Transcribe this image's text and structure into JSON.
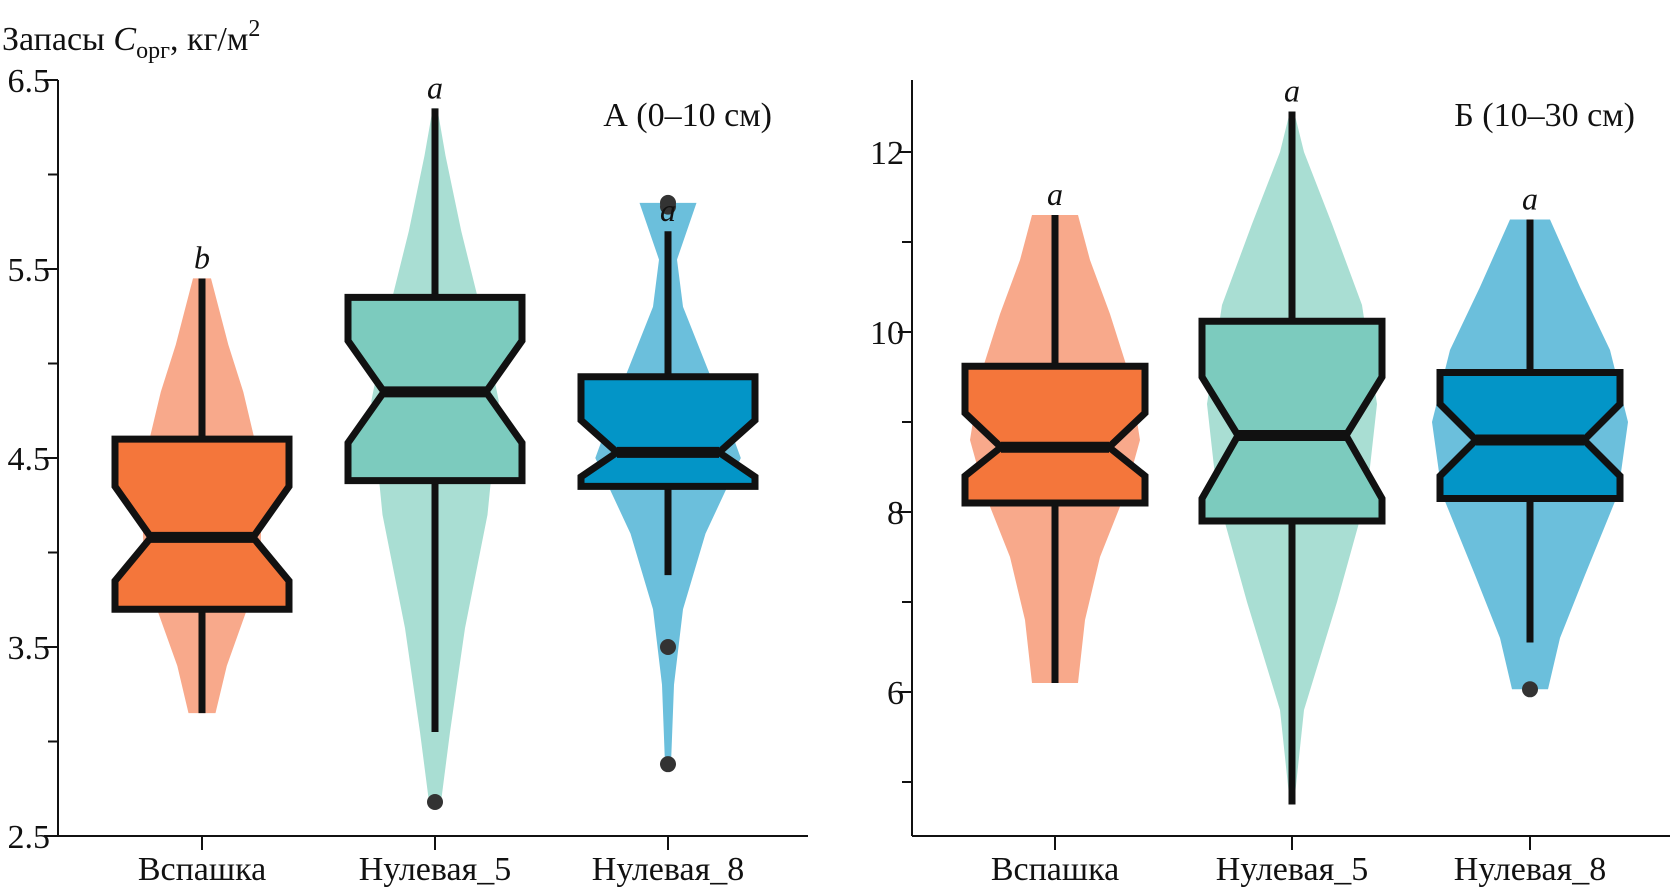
{
  "ylabel": {
    "prefix": "Запасы ",
    "symbol": "C",
    "subscript": "орг",
    "suffix": ", кг/м",
    "superscript": "2"
  },
  "colors": {
    "Вспашка": {
      "violin": "#f8a98b",
      "box": "#f4763b"
    },
    "Нулевая_5": {
      "violin": "#a9ded3",
      "box": "#7ccbbe"
    },
    "Нулевая_8": {
      "violin": "#6bbfdc",
      "box": "#0395c7"
    },
    "outlier": "#333333",
    "line": "#111111"
  },
  "chart_data": [
    {
      "type": "box",
      "panel_label": "А (0–10 см)",
      "categories": [
        "Вспашка",
        "Нулевая_5",
        "Нулевая_8"
      ],
      "ylim": [
        2.5,
        6.5
      ],
      "yticks": [
        2.5,
        3.5,
        4.5,
        5.5,
        6.5
      ],
      "yminor": [
        3.0,
        4.0,
        5.0,
        6.0
      ],
      "groups": [
        {
          "name": "Вспашка",
          "letter": "b",
          "min": 3.15,
          "q1": 3.7,
          "median": 4.08,
          "q3": 4.6,
          "max": 5.45,
          "notch_low": 3.85,
          "notch_high": 4.35,
          "outliers": [],
          "violin": [
            [
              3.15,
              0.18
            ],
            [
              3.4,
              0.33
            ],
            [
              3.7,
              0.6
            ],
            [
              4.0,
              0.78
            ],
            [
              4.3,
              0.8
            ],
            [
              4.6,
              0.7
            ],
            [
              4.85,
              0.55
            ],
            [
              5.1,
              0.35
            ],
            [
              5.45,
              0.12
            ]
          ]
        },
        {
          "name": "Нулевая_5",
          "letter": "a",
          "min": 3.05,
          "q1": 4.38,
          "median": 4.85,
          "q3": 5.35,
          "max": 6.35,
          "notch_low": 4.58,
          "notch_high": 5.12,
          "outliers": [
            2.68
          ],
          "violin": [
            [
              2.68,
              0.08
            ],
            [
              3.05,
              0.2
            ],
            [
              3.6,
              0.4
            ],
            [
              4.2,
              0.7
            ],
            [
              4.8,
              0.85
            ],
            [
              5.3,
              0.6
            ],
            [
              5.7,
              0.35
            ],
            [
              6.1,
              0.14
            ],
            [
              6.35,
              0.03
            ]
          ]
        },
        {
          "name": "Нулевая_8",
          "letter": "a",
          "min": 3.88,
          "q1": 4.35,
          "median": 4.53,
          "q3": 4.93,
          "max": 5.7,
          "notch_low": 4.4,
          "notch_high": 4.7,
          "outliers": [
            5.83,
            5.85,
            3.5,
            2.88
          ],
          "violin": [
            [
              2.88,
              0.04
            ],
            [
              3.3,
              0.08
            ],
            [
              3.7,
              0.2
            ],
            [
              4.1,
              0.5
            ],
            [
              4.5,
              0.97
            ],
            [
              4.9,
              0.6
            ],
            [
              5.3,
              0.2
            ],
            [
              5.55,
              0.12
            ],
            [
              5.85,
              0.38
            ]
          ]
        }
      ]
    },
    {
      "type": "box",
      "panel_label": "Б (10–30 см)",
      "categories": [
        "Вспашка",
        "Нулевая_5",
        "Нулевая_8"
      ],
      "ylim": [
        4.4,
        12.8
      ],
      "yticks": [
        6,
        8,
        10,
        12
      ],
      "yminor": [
        5,
        7,
        9,
        11
      ],
      "groups": [
        {
          "name": "Вспашка",
          "letter": "a",
          "min": 6.1,
          "q1": 8.1,
          "median": 8.72,
          "q3": 9.62,
          "max": 11.3,
          "notch_low": 8.4,
          "notch_high": 9.1,
          "outliers": [],
          "violin": [
            [
              6.1,
              0.23
            ],
            [
              6.8,
              0.3
            ],
            [
              7.5,
              0.45
            ],
            [
              8.2,
              0.7
            ],
            [
              8.8,
              0.85
            ],
            [
              9.5,
              0.75
            ],
            [
              10.2,
              0.55
            ],
            [
              10.8,
              0.35
            ],
            [
              11.3,
              0.23
            ]
          ]
        },
        {
          "name": "Нулевая_5",
          "letter": "a",
          "min": 4.75,
          "q1": 7.9,
          "median": 8.85,
          "q3": 10.12,
          "max": 12.45,
          "notch_low": 8.15,
          "notch_high": 9.5,
          "outliers": [],
          "violin": [
            [
              4.75,
              0.02
            ],
            [
              5.8,
              0.12
            ],
            [
              7.0,
              0.45
            ],
            [
              8.2,
              0.75
            ],
            [
              9.2,
              0.85
            ],
            [
              10.3,
              0.7
            ],
            [
              11.2,
              0.4
            ],
            [
              12.0,
              0.12
            ],
            [
              12.45,
              0.02
            ]
          ]
        },
        {
          "name": "Нулевая_8",
          "letter": "a",
          "min": 6.55,
          "q1": 8.15,
          "median": 8.8,
          "q3": 9.55,
          "max": 11.25,
          "notch_low": 8.4,
          "notch_high": 9.2,
          "outliers": [
            6.03
          ],
          "violin": [
            [
              6.03,
              0.18
            ],
            [
              6.6,
              0.3
            ],
            [
              7.3,
              0.55
            ],
            [
              8.2,
              0.88
            ],
            [
              9.0,
              0.98
            ],
            [
              9.8,
              0.8
            ],
            [
              10.5,
              0.5
            ],
            [
              11.0,
              0.3
            ],
            [
              11.25,
              0.2
            ]
          ]
        }
      ]
    }
  ]
}
